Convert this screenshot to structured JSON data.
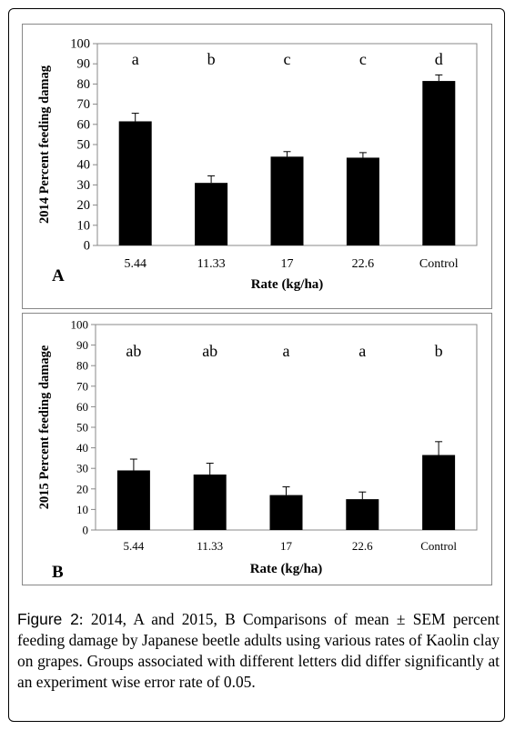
{
  "chart_data": [
    {
      "type": "bar",
      "panel_label": "A",
      "categories": [
        "5.44",
        "11.33",
        "17",
        "22.6",
        "Control"
      ],
      "values": [
        61.5,
        31,
        44,
        43.5,
        81.5
      ],
      "errors": [
        4,
        3.5,
        2.5,
        2.5,
        3
      ],
      "letters": [
        "a",
        "b",
        "c",
        "c",
        "d"
      ],
      "xlabel": "Rate (kg/ha)",
      "ylabel": "2014 Percent feeding damag",
      "ylim": [
        0,
        100
      ],
      "yticks": [
        0,
        10,
        20,
        30,
        40,
        50,
        60,
        70,
        80,
        90,
        100
      ],
      "bar_color": "#000000"
    },
    {
      "type": "bar",
      "panel_label": "B",
      "categories": [
        "5.44",
        "11.33",
        "17",
        "22.6",
        "Control"
      ],
      "values": [
        29,
        27,
        17,
        15,
        36.5
      ],
      "errors": [
        5.5,
        5.5,
        4,
        3.5,
        6.5
      ],
      "letters": [
        "ab",
        "ab",
        "a",
        "a",
        "b"
      ],
      "xlabel": "Rate (kg/ha)",
      "ylabel": "2015 Percent feeding damage",
      "ylim": [
        0,
        100
      ],
      "yticks": [
        0,
        10,
        20,
        30,
        40,
        50,
        60,
        70,
        80,
        90,
        100
      ],
      "bar_color": "#000000"
    }
  ],
  "caption": {
    "label": "Figure 2",
    "text": ": 2014, A and 2015, B Comparisons of mean ± SEM percent feeding damage by Japanese beetle adults using various rates of Kaolin clay on grapes. Groups associated with different letters did differ significantly at an experiment wise error rate of 0.05."
  }
}
